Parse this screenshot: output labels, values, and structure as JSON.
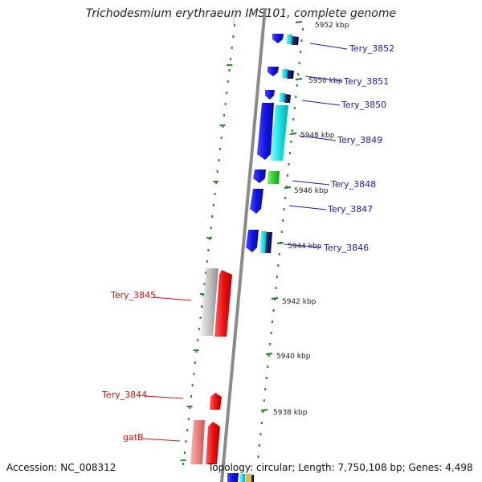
{
  "title": "Trichodesmium erythraeum IMS101, complete genome",
  "footer": {
    "accession": "Accession: NC_008312",
    "summary": "Topology: circular; Length: 7,750,108 bp; Genes: 4,498"
  },
  "ticks": [
    {
      "label": "5952 kbp"
    },
    {
      "label": "5950 kbp"
    },
    {
      "label": "5948 kbp"
    },
    {
      "label": "5946 kbp"
    },
    {
      "label": "5944 kbp"
    },
    {
      "label": "5942 kbp"
    },
    {
      "label": "5940 kbp"
    },
    {
      "label": "5938 kbp"
    }
  ],
  "genes_forward": [
    {
      "label": "Tery_3852"
    },
    {
      "label": "Tery_3851"
    },
    {
      "label": "Tery_3850"
    },
    {
      "label": "Tery_3849"
    },
    {
      "label": "Tery_3848"
    },
    {
      "label": "Tery_3847"
    },
    {
      "label": "Tery_3846"
    }
  ],
  "genes_reverse": [
    {
      "label": "Tery_3845"
    },
    {
      "label": "Tery_3844"
    },
    {
      "label": "gatB"
    }
  ],
  "colors": {
    "blue": "#1212e6",
    "cyan": "#18e6e6",
    "navy": "#08084a",
    "green": "#2ed12e",
    "red": "#ee1111",
    "pink": "#ee8080",
    "gray": "#c4c4c4",
    "dots": "#2a8a2a",
    "ticks": "#1f7a1f",
    "backbone": "#8a8a8a"
  }
}
